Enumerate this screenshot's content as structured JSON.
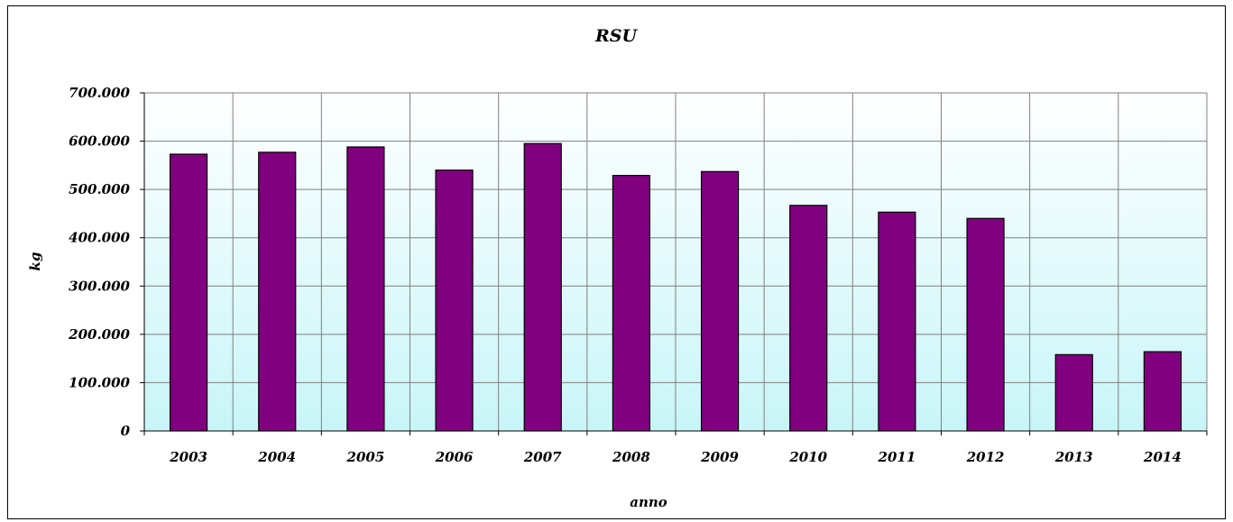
{
  "chart_data": {
    "type": "bar",
    "title": "RSU",
    "xlabel": "anno",
    "ylabel": "kg",
    "categories": [
      "2003",
      "2004",
      "2005",
      "2006",
      "2007",
      "2008",
      "2009",
      "2010",
      "2011",
      "2012",
      "2013",
      "2014"
    ],
    "values": [
      573000,
      577000,
      588000,
      540000,
      595000,
      529000,
      537000,
      467000,
      453000,
      440000,
      158000,
      164000
    ],
    "ylim": [
      0,
      700000
    ],
    "yticks": [
      0,
      100000,
      200000,
      300000,
      400000,
      500000,
      600000,
      700000
    ],
    "ytick_labels": [
      "0",
      "100.000",
      "200.000",
      "300.000",
      "400.000",
      "500.000",
      "600.000",
      "700.000"
    ],
    "grid": true,
    "legend": "none",
    "colors": {
      "bar": "#800080",
      "plot_bg_top": "#ffffff",
      "plot_bg_bottom": "#c8f5f8",
      "grid": "#808080"
    }
  }
}
